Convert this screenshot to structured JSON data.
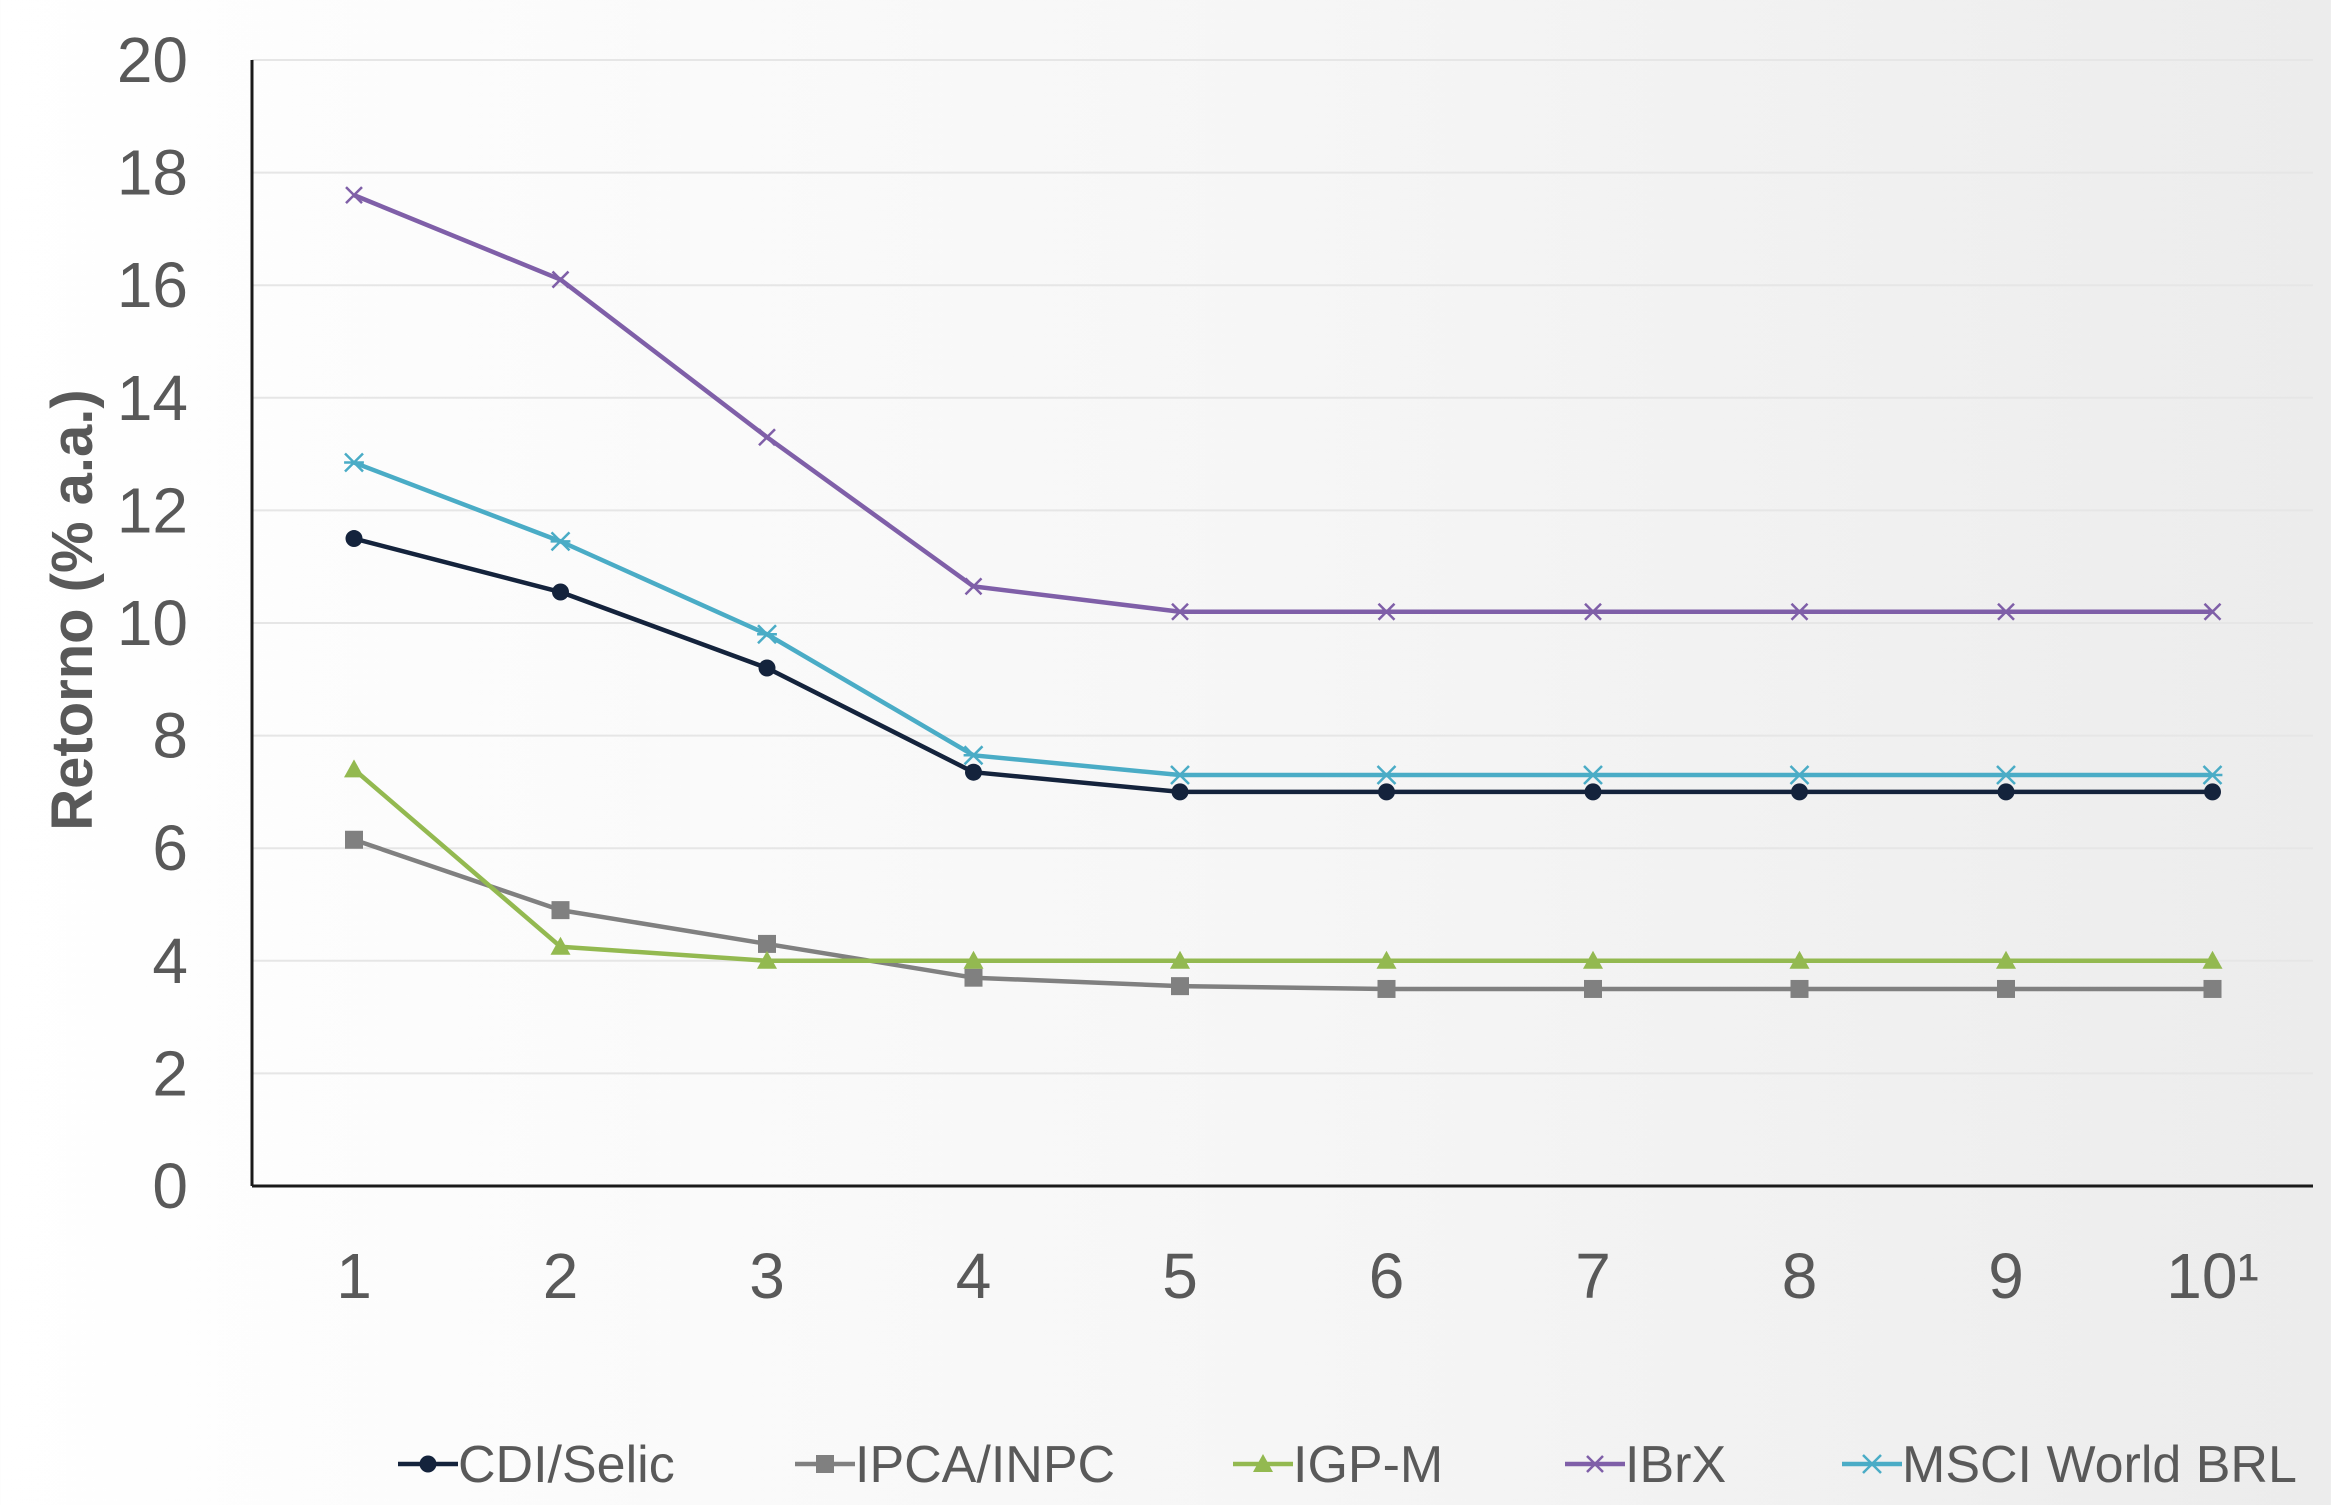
{
  "chart_data": {
    "type": "line",
    "ylabel": "Retorno (% a.a.)",
    "xlabel": "",
    "ylim": [
      0,
      20
    ],
    "yticks": [
      0,
      2,
      4,
      6,
      8,
      10,
      12,
      14,
      16,
      18,
      20
    ],
    "x_tick_labels": [
      "1",
      "2",
      "3",
      "4",
      "5",
      "6",
      "7",
      "8",
      "9",
      "10¹"
    ],
    "grid": true,
    "legend_position": "bottom",
    "series": [
      {
        "name": "CDI/Selic",
        "color": "#14233c",
        "marker": "circle",
        "values": [
          11.5,
          10.55,
          9.2,
          7.35,
          7.0,
          7.0,
          7.0,
          7.0,
          7.0,
          7.0
        ]
      },
      {
        "name": "IPCA/INPC",
        "color": "#808080",
        "marker": "square",
        "values": [
          6.15,
          4.9,
          4.3,
          3.7,
          3.55,
          3.5,
          3.5,
          3.5,
          3.5,
          3.5
        ]
      },
      {
        "name": "IGP-M",
        "color": "#93b950",
        "marker": "triangle",
        "values": [
          7.4,
          4.25,
          4.0,
          4.0,
          4.0,
          4.0,
          4.0,
          4.0,
          4.0,
          4.0
        ]
      },
      {
        "name": "IBrX",
        "color": "#7f5fa8",
        "marker": "x",
        "values": [
          17.6,
          16.1,
          13.3,
          10.65,
          10.2,
          10.2,
          10.2,
          10.2,
          10.2,
          10.2
        ]
      },
      {
        "name": "MSCI World BRL",
        "color": "#4aacc6",
        "marker": "star",
        "values": [
          12.85,
          11.45,
          9.8,
          7.65,
          7.3,
          7.3,
          7.3,
          7.3,
          7.3,
          7.3
        ]
      }
    ]
  }
}
